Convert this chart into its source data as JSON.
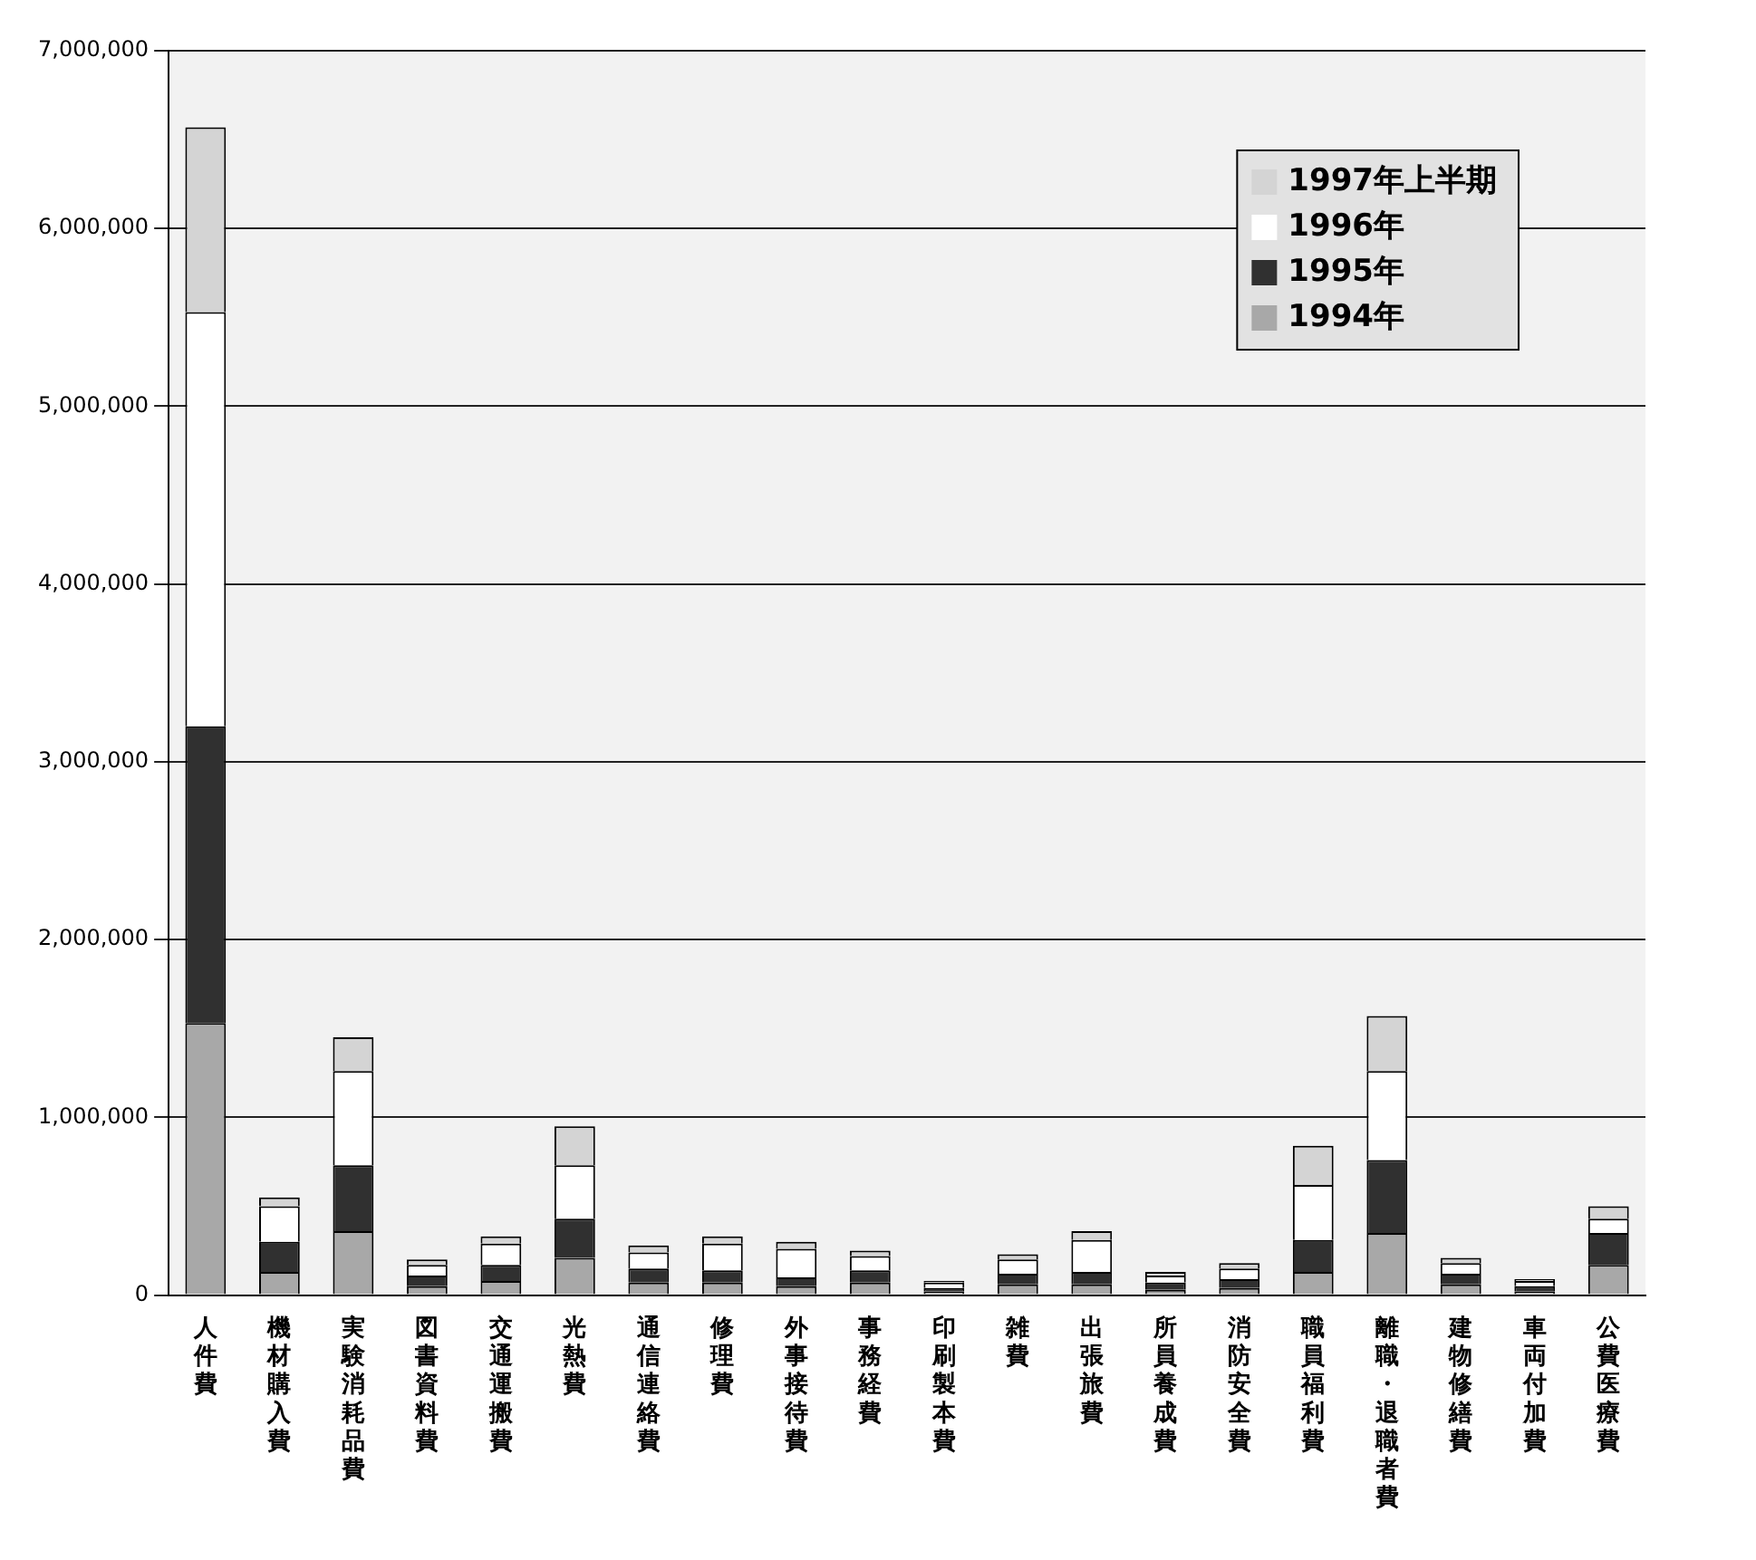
{
  "chart_data": {
    "type": "bar",
    "stacked": true,
    "grid": "y",
    "legend": "top right",
    "categories": [
      "人件費",
      "機材購入費",
      "実験消耗品費",
      "図書資料費",
      "交通運搬費",
      "光熱費",
      "通信連絡費",
      "修理費",
      "外事接待費",
      "事務経費",
      "印刷製本費",
      "雑費",
      "出張旅費",
      "所員養成費",
      "消防安全費",
      "職員福利費",
      "離職・退職者費",
      "建物修繕費",
      "車両付加費",
      "公費医療費"
    ],
    "series": [
      {
        "name": "1994年",
        "color": "#a8a8a8",
        "values": [
          1530000,
          130000,
          360000,
          50000,
          80000,
          210000,
          70000,
          70000,
          50000,
          70000,
          20000,
          60000,
          60000,
          30000,
          40000,
          130000,
          350000,
          60000,
          20000,
          170000
        ]
      },
      {
        "name": "1995年",
        "color": "#303030",
        "values": [
          1670000,
          170000,
          370000,
          60000,
          90000,
          220000,
          80000,
          70000,
          50000,
          70000,
          20000,
          60000,
          70000,
          40000,
          50000,
          180000,
          410000,
          60000,
          30000,
          180000
        ]
      },
      {
        "name": "1996年",
        "color": "#ffffff",
        "values": [
          2330000,
          200000,
          530000,
          60000,
          120000,
          300000,
          90000,
          150000,
          160000,
          80000,
          30000,
          80000,
          180000,
          40000,
          60000,
          310000,
          500000,
          60000,
          30000,
          80000
        ]
      },
      {
        "name": "1997年上半期",
        "color": "#d4d4d4",
        "values": [
          1040000,
          50000,
          190000,
          30000,
          40000,
          220000,
          40000,
          40000,
          40000,
          30000,
          10000,
          30000,
          50000,
          20000,
          30000,
          220000,
          310000,
          30000,
          10000,
          70000
        ]
      }
    ],
    "ylim": [
      0,
      7000000
    ],
    "yticks": [
      {
        "value": 0,
        "label": "0"
      },
      {
        "value": 1000000,
        "label": "1,000,000"
      },
      {
        "value": 2000000,
        "label": "2,000,000"
      },
      {
        "value": 3000000,
        "label": "3,000,000"
      },
      {
        "value": 4000000,
        "label": "4,000,000"
      },
      {
        "value": 5000000,
        "label": "5,000,000"
      },
      {
        "value": 6000000,
        "label": "6,000,000"
      },
      {
        "value": 7000000,
        "label": "7,000,000"
      }
    ]
  }
}
